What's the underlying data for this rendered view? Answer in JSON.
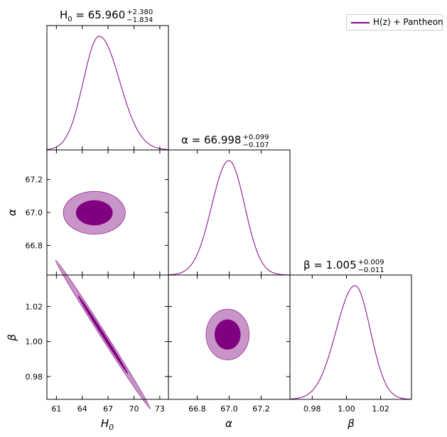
{
  "chart_data": {
    "type": "triangle",
    "color": "#800080",
    "color_light": "#c994c7",
    "legend": {
      "label": "H(z) + Pantheon",
      "placement": "top-right"
    },
    "parameters": [
      {
        "name": "H0",
        "axis_label": "H",
        "axis_label_sub": "0",
        "title_name": "H",
        "title_sub": "0",
        "value": "65.960",
        "plus": "+2.380",
        "minus": "−1.834",
        "mean": 65.96,
        "sigma_plus": 2.38,
        "sigma_minus": 1.834,
        "range": [
          59.9,
          74.0
        ],
        "ticks": [
          61,
          64,
          67,
          70,
          73
        ]
      },
      {
        "name": "alpha",
        "axis_label": "α",
        "title_name": "α",
        "value": "66.998",
        "plus": "+0.099",
        "minus": "−0.107",
        "mean": 66.998,
        "sigma_plus": 0.099,
        "sigma_minus": 0.107,
        "range": [
          66.62,
          67.38
        ],
        "ticks": [
          66.8,
          67.0,
          67.2
        ]
      },
      {
        "name": "beta",
        "axis_label": "β",
        "title_name": "β",
        "value": "1.005",
        "plus": "+0.009",
        "minus": "−0.011",
        "mean": 1.005,
        "sigma_plus": 0.009,
        "sigma_minus": 0.011,
        "range": [
          0.967,
          1.038
        ],
        "ticks": [
          0.98,
          1.0,
          1.02
        ]
      }
    ],
    "contours": [
      {
        "row": 1,
        "col": 0,
        "params": [
          "H0",
          "alpha"
        ],
        "center": [
          65.4,
          66.998
        ],
        "semi_axes_1sigma": [
          2.1,
          0.075
        ],
        "semi_axes_2sigma": [
          3.6,
          0.13
        ],
        "rotation_deg": 0
      },
      {
        "row": 2,
        "col": 0,
        "params": [
          "H0",
          "beta"
        ],
        "center": [
          66.4,
          1.004
        ],
        "semi_axes_1sigma": [
          2.9,
          0.007
        ],
        "semi_axes_2sigma": [
          5.5,
          0.0125
        ],
        "correlation": "strong-negative"
      },
      {
        "row": 2,
        "col": 1,
        "params": [
          "alpha",
          "beta"
        ],
        "center": [
          66.99,
          1.004
        ],
        "semi_axes_1sigma": [
          0.08,
          0.0085
        ],
        "semi_axes_2sigma": [
          0.135,
          0.0145
        ],
        "rotation_deg": 0
      }
    ]
  }
}
